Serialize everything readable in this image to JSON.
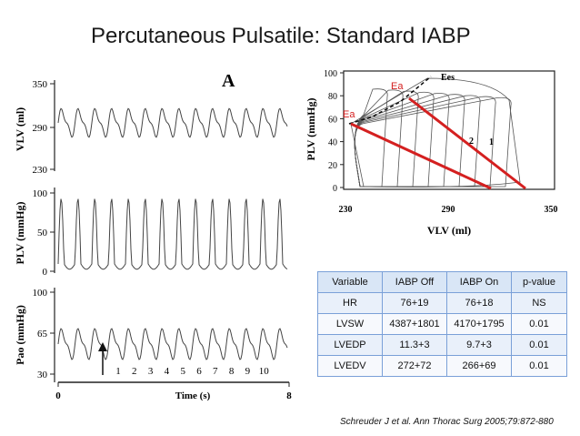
{
  "title": "Percutaneous Pulsatile: Standard IABP",
  "panel_letter": "A",
  "left_panels": {
    "vlv": {
      "ylabel": "VLV (ml)",
      "ticks": [
        "350",
        "290",
        "230"
      ]
    },
    "plv": {
      "ylabel": "PLV (mmHg)",
      "ticks": [
        "100",
        "50",
        "0"
      ]
    },
    "pao": {
      "ylabel": "Pao (mmHg)",
      "ticks": [
        "100",
        "65",
        "30"
      ]
    },
    "beat_numbers": [
      "1",
      "2",
      "3",
      "4",
      "5",
      "6",
      "7",
      "8",
      "9",
      "10"
    ],
    "xaxis": {
      "label": "Time (s)",
      "ticks": [
        "0",
        "8"
      ]
    }
  },
  "pv_loop": {
    "ylabel": "PLV (mmHg)",
    "xlabel": "VLV (ml)",
    "y_ticks": [
      "100",
      "80",
      "60",
      "40",
      "20",
      "0"
    ],
    "x_ticks": [
      "230",
      "290",
      "350"
    ],
    "ees_label": "Ees",
    "ea_labels": [
      "Ea",
      "Ea"
    ],
    "loop_labels": [
      "2",
      "1"
    ],
    "colors": {
      "ea_line": "#d42020",
      "ea_text": "#d42020"
    }
  },
  "table": {
    "headers": [
      "Variable",
      "IABP Off",
      "IABP On",
      "p-value"
    ],
    "rows": [
      [
        "HR",
        "76+19",
        "76+18",
        "NS"
      ],
      [
        "LVSW",
        "4387+1801",
        "4170+1795",
        "0.01"
      ],
      [
        "LVEDP",
        "11.3+3",
        "9.7+3",
        "0.01"
      ],
      [
        "LVEDV",
        "272+72",
        "266+69",
        "0.01"
      ]
    ]
  },
  "citation": "Schreuder J et al. Ann Thorac Surg 2005;79:872-880"
}
